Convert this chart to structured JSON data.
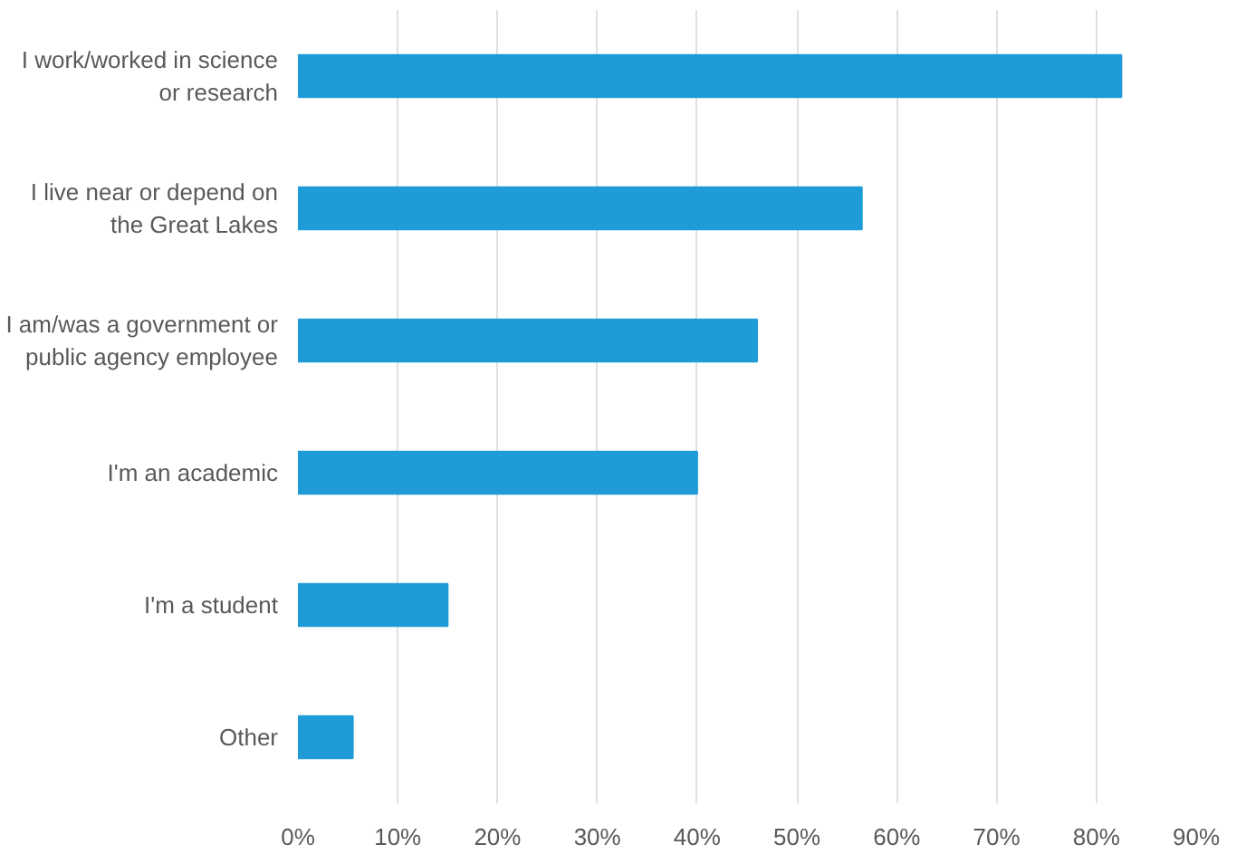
{
  "chart_data": {
    "type": "bar",
    "orientation": "horizontal",
    "categories": [
      "I work/worked in science or research",
      "I live near or depend on the Great Lakes",
      "I am/was a government or public agency employee",
      "I'm an academic",
      "I'm a student",
      "Other"
    ],
    "values": [
      82.5,
      56.5,
      46,
      40,
      15,
      5.5
    ],
    "color": "#1f9bd7",
    "xlim": [
      0,
      90
    ],
    "xticks": [
      {
        "value": 0,
        "label": "0%"
      },
      {
        "value": 10,
        "label": "10%"
      },
      {
        "value": 20,
        "label": "20%"
      },
      {
        "value": 30,
        "label": "30%"
      },
      {
        "value": 40,
        "label": "40%"
      },
      {
        "value": 50,
        "label": "50%"
      },
      {
        "value": 60,
        "label": "60%"
      },
      {
        "value": 70,
        "label": "70%"
      },
      {
        "value": 80,
        "label": "80%"
      },
      {
        "value": 90,
        "label": "90%"
      }
    ],
    "grid": "x"
  }
}
